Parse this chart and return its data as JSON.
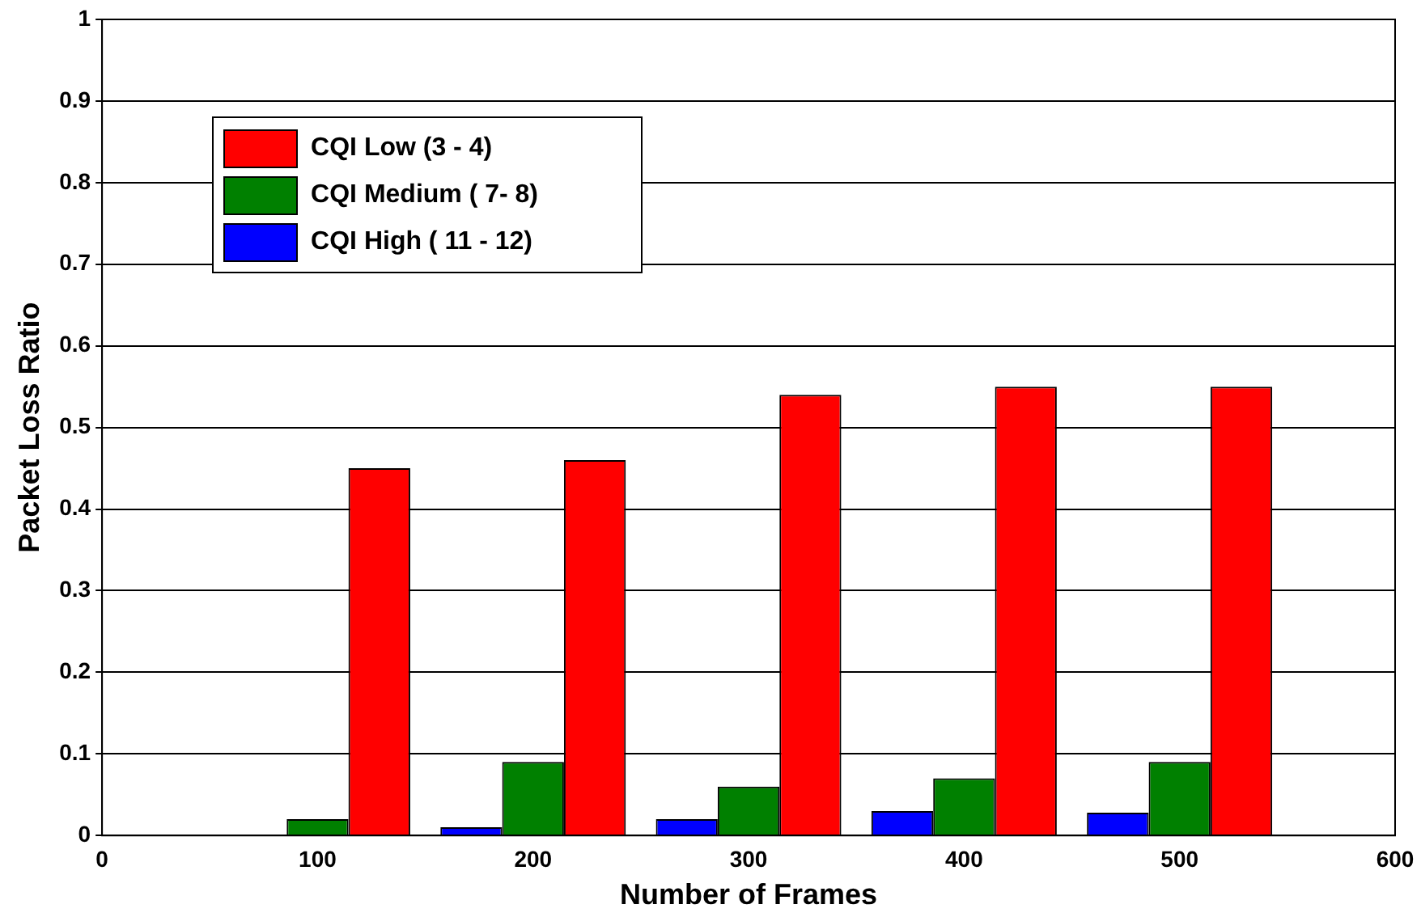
{
  "chart_data": {
    "type": "bar",
    "xlabel": "Number of Frames",
    "ylabel": "Packet Loss Ratio",
    "x": [
      100,
      200,
      300,
      400,
      500
    ],
    "series": [
      {
        "name": "CQI High ( 11 - 12)",
        "color": "#0000ff",
        "values": [
          0,
          0.01,
          0.02,
          0.03,
          0.028
        ]
      },
      {
        "name": "CQI Medium ( 7- 8)",
        "color": "#008000",
        "values": [
          0.02,
          0.09,
          0.06,
          0.07,
          0.09
        ]
      },
      {
        "name": "CQI Low (3 - 4)",
        "color": "#ff0000",
        "values": [
          0.45,
          0.46,
          0.54,
          0.55,
          0.55
        ]
      }
    ],
    "xlim": [
      0,
      600
    ],
    "xticks": [
      0,
      100,
      200,
      300,
      400,
      500,
      600
    ],
    "ylim": [
      0,
      1
    ],
    "yticks": [
      0,
      0.1,
      0.2,
      0.3,
      0.4,
      0.5,
      0.6,
      0.7,
      0.8,
      0.9,
      1
    ],
    "grid": "y",
    "legend": "top left"
  }
}
